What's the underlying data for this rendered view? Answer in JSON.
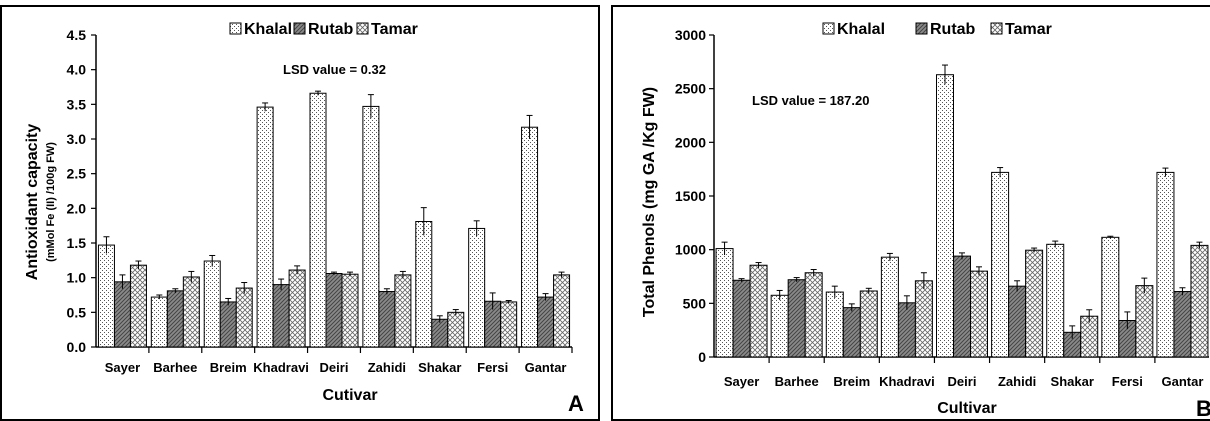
{
  "chart_data": [
    {
      "type": "bar",
      "panel_label": "A",
      "categories": [
        "Sayer",
        "Barhee",
        "Breim",
        "Khadravi",
        "Deiri",
        "Zahidi",
        "Shakar",
        "Fersi",
        "Gantar"
      ],
      "series": [
        {
          "name": "Khalal",
          "values": [
            1.47,
            0.72,
            1.24,
            3.46,
            3.66,
            3.47,
            1.81,
            1.71,
            3.17
          ],
          "errors": [
            0.12,
            0.03,
            0.08,
            0.06,
            0.03,
            0.17,
            0.2,
            0.11,
            0.17
          ]
        },
        {
          "name": "Rutab",
          "values": [
            0.94,
            0.81,
            0.65,
            0.9,
            1.06,
            0.8,
            0.4,
            0.66,
            0.72
          ],
          "errors": [
            0.1,
            0.03,
            0.05,
            0.08,
            0.02,
            0.04,
            0.05,
            0.12,
            0.05
          ]
        },
        {
          "name": "Tamar",
          "values": [
            1.18,
            1.01,
            0.85,
            1.11,
            1.05,
            1.04,
            0.5,
            0.65,
            1.04
          ],
          "errors": [
            0.06,
            0.08,
            0.08,
            0.06,
            0.03,
            0.05,
            0.04,
            0.02,
            0.04
          ]
        }
      ],
      "ylim": [
        0,
        4.5
      ],
      "yticks": [
        "0.0",
        "0.5",
        "1.0",
        "1.5",
        "2.0",
        "2.5",
        "3.0",
        "3.5",
        "4.0",
        "4.5"
      ],
      "xlabel": "Cutivar",
      "ylabel": "Antioxidant capacity",
      "ylabel_sub": "(mMol Fe (II) /100g FW)",
      "annotation": "LSD value = 0.32",
      "legend_position": "top-center",
      "grid": false
    },
    {
      "type": "bar",
      "panel_label": "B",
      "categories": [
        "Sayer",
        "Barhee",
        "Breim",
        "Khadravi",
        "Deiri",
        "Zahidi",
        "Shakar",
        "Fersi",
        "Gantar"
      ],
      "series": [
        {
          "name": "Khalal",
          "values": [
            1010,
            575,
            605,
            930,
            2630,
            1720,
            1050,
            1115,
            1720
          ],
          "errors": [
            60,
            45,
            55,
            35,
            90,
            45,
            30,
            10,
            40
          ]
        },
        {
          "name": "Rutab",
          "values": [
            715,
            720,
            460,
            505,
            940,
            660,
            230,
            340,
            610
          ],
          "errors": [
            15,
            20,
            35,
            65,
            30,
            50,
            60,
            80,
            35
          ]
        },
        {
          "name": "Tamar",
          "values": [
            855,
            785,
            615,
            710,
            800,
            995,
            380,
            665,
            1040
          ],
          "errors": [
            25,
            30,
            25,
            75,
            40,
            20,
            60,
            70,
            30
          ]
        }
      ],
      "ylim": [
        0,
        3000
      ],
      "yticks": [
        "0",
        "500",
        "1000",
        "1500",
        "2000",
        "2500",
        "3000"
      ],
      "xlabel": "Cultivar",
      "ylabel": "Total Phenols (mg GA /Kg FW)",
      "annotation": "LSD value = 187.20",
      "legend_position": "top-center",
      "grid": false
    }
  ]
}
